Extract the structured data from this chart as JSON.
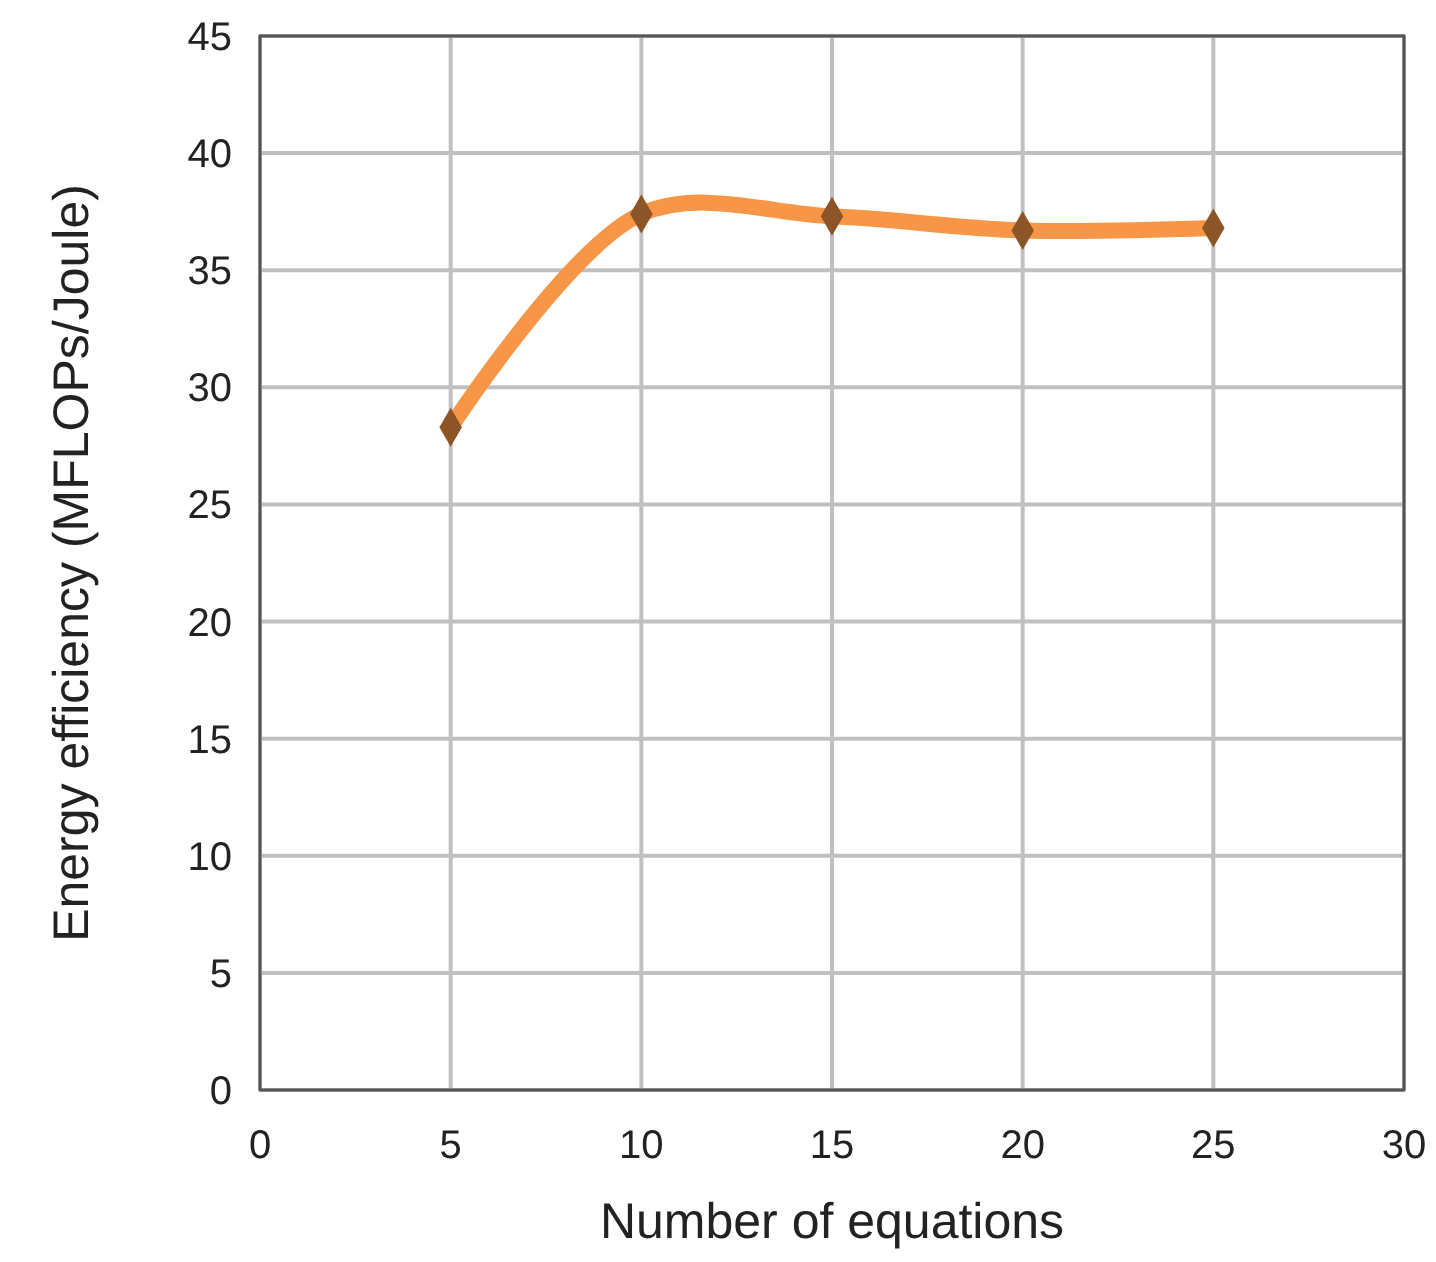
{
  "chart_data": {
    "type": "line",
    "xlabel": "Number of equations",
    "ylabel": "Energy efficiency  (MFLOPs/Joule)",
    "x": [
      5,
      10,
      15,
      20,
      25
    ],
    "series": [
      {
        "color": "#f79646",
        "values": [
          28.3,
          37.4,
          37.3,
          36.7,
          36.8
        ]
      }
    ],
    "marker": "diamond",
    "xlim": [
      0,
      30
    ],
    "xticks": [
      0,
      5,
      10,
      15,
      20,
      25,
      30
    ],
    "ylim": [
      0,
      45
    ],
    "yticks": [
      0,
      5,
      10,
      15,
      20,
      25,
      30,
      35,
      40,
      45
    ],
    "grid": true
  }
}
